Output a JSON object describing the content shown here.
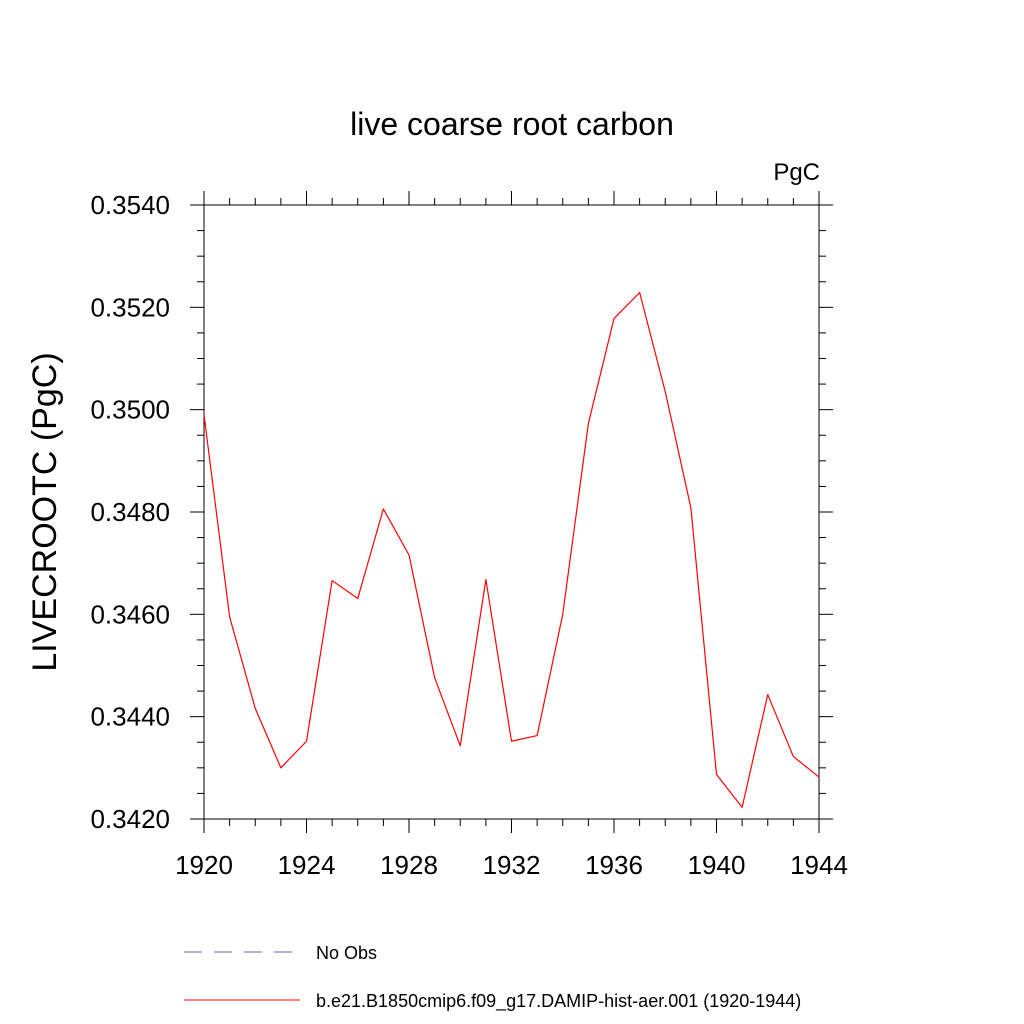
{
  "chart_data": {
    "type": "line",
    "title": "live coarse root carbon",
    "units_label": "PgC",
    "ylabel": "LIVECROOTC  (PgC)",
    "xlabel": "",
    "xlim": [
      1920,
      1944
    ],
    "ylim": [
      0.342,
      0.354
    ],
    "x_ticks": [
      "1920",
      "1924",
      "1928",
      "1932",
      "1936",
      "1940",
      "1944"
    ],
    "y_ticks": [
      "0.3420",
      "0.3440",
      "0.3460",
      "0.3480",
      "0.3500",
      "0.3520",
      "0.3540"
    ],
    "grid": false,
    "legend_position": "bottom",
    "x": [
      1920,
      1921,
      1922,
      1923,
      1924,
      1925,
      1926,
      1927,
      1928,
      1929,
      1930,
      1931,
      1932,
      1933,
      1934,
      1935,
      1936,
      1937,
      1938,
      1939,
      1940,
      1941,
      1942,
      1943,
      1944
    ],
    "series": [
      {
        "name": "b.e21.B1850cmip6.f09_g17.DAMIP-hist-aer.001 (1920-1944)",
        "color": "#ff0000",
        "dash": "solid",
        "values": [
          0.3499,
          0.34595,
          0.34416,
          0.343,
          0.34352,
          0.34666,
          0.34631,
          0.34806,
          0.34716,
          0.34476,
          0.34343,
          0.34668,
          0.34352,
          0.34363,
          0.346,
          0.34973,
          0.35178,
          0.35229,
          0.35035,
          0.34808,
          0.34287,
          0.34223,
          0.34443,
          0.34322,
          0.34282
        ]
      }
    ],
    "legend": [
      {
        "label": "No Obs",
        "color": "#6a5acd",
        "dash": "dashed"
      },
      {
        "label": "b.e21.B1850cmip6.f09_g17.DAMIP-hist-aer.001 (1920-1944)",
        "color": "#ff0000",
        "dash": "solid"
      }
    ]
  }
}
